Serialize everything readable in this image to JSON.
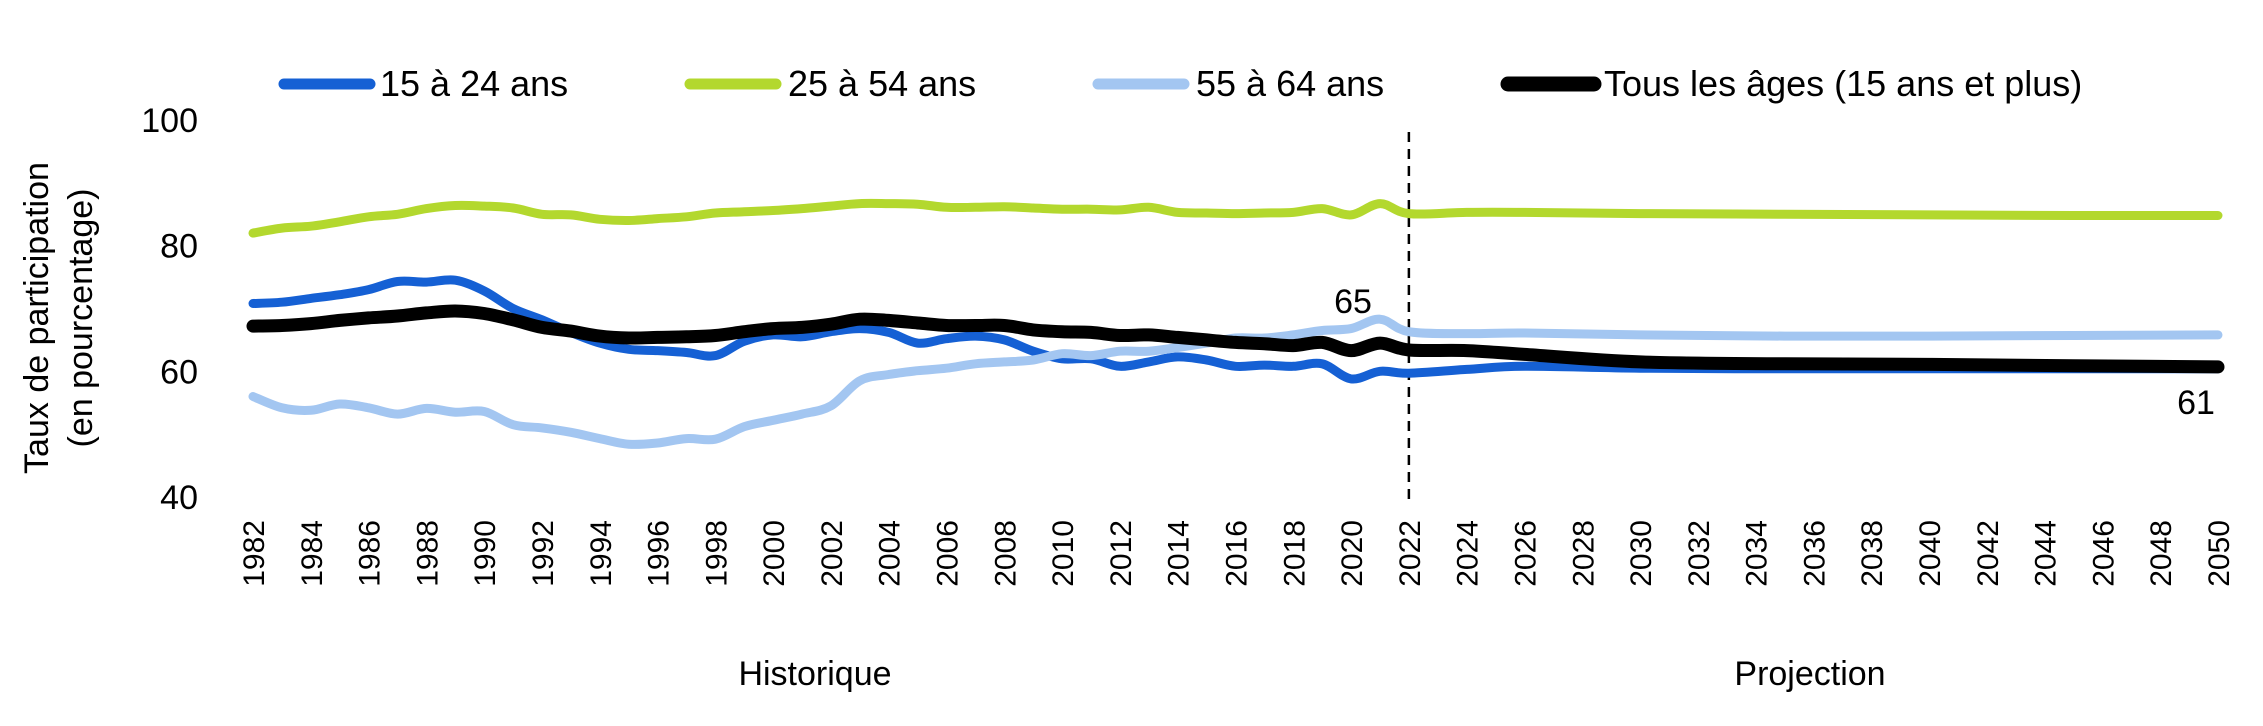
{
  "chart_data": {
    "type": "line",
    "title": "",
    "ylabel": [
      "Taux de participation",
      "(en pourcentage)"
    ],
    "xlabel": "",
    "ylim": [
      40,
      100
    ],
    "yticks": [
      40,
      60,
      80,
      100
    ],
    "xlim": [
      1982,
      2050
    ],
    "xticks": [
      "1982",
      "1984",
      "1986",
      "1988",
      "1990",
      "1992",
      "1994",
      "1996",
      "1998",
      "2000",
      "2002",
      "2004",
      "2006",
      "2008",
      "2010",
      "2012",
      "2014",
      "2016",
      "2018",
      "2020",
      "2022",
      "2024",
      "2026",
      "2028",
      "2030",
      "2032",
      "2034",
      "2036",
      "2038",
      "2040",
      "2042",
      "2044",
      "2046",
      "2048",
      "2050"
    ],
    "grid": false,
    "legend_position": "top",
    "divider_year": 2022,
    "sections": [
      "Historique",
      "Projection"
    ],
    "series": [
      {
        "name": "15 à 24 ans",
        "color": "#1560d4",
        "x": [
          1982,
          1983,
          1984,
          1985,
          1986,
          1987,
          1988,
          1989,
          1990,
          1991,
          1992,
          1993,
          1994,
          1995,
          1996,
          1997,
          1998,
          1999,
          2000,
          2001,
          2002,
          2003,
          2004,
          2005,
          2006,
          2007,
          2008,
          2009,
          2010,
          2011,
          2012,
          2013,
          2014,
          2015,
          2016,
          2017,
          2018,
          2019,
          2020,
          2021,
          2022,
          2024,
          2026,
          2030,
          2035,
          2040,
          2045,
          2050
        ],
        "values": [
          70.8,
          71.0,
          71.6,
          72.2,
          73.0,
          74.3,
          74.2,
          74.5,
          72.8,
          70.0,
          68.2,
          66.2,
          64.5,
          63.5,
          63.3,
          63.0,
          62.5,
          64.8,
          65.8,
          65.5,
          66.3,
          66.8,
          66.2,
          64.5,
          65.2,
          65.6,
          65.0,
          63.2,
          62.0,
          62.0,
          60.8,
          61.5,
          62.3,
          61.8,
          60.8,
          61.0,
          60.8,
          61.2,
          58.8,
          60.0,
          59.7,
          60.3,
          60.8,
          60.5,
          60.4,
          60.4,
          60.4,
          60.4
        ]
      },
      {
        "name": "25 à 54 ans",
        "color": "#b3d82e",
        "x": [
          1982,
          1983,
          1984,
          1985,
          1986,
          1987,
          1988,
          1989,
          1990,
          1991,
          1992,
          1993,
          1994,
          1995,
          1996,
          1997,
          1998,
          1999,
          2000,
          2001,
          2002,
          2003,
          2004,
          2005,
          2006,
          2007,
          2008,
          2009,
          2010,
          2011,
          2012,
          2013,
          2014,
          2015,
          2016,
          2017,
          2018,
          2019,
          2020,
          2021,
          2022,
          2024,
          2026,
          2030,
          2035,
          2040,
          2045,
          2050
        ],
        "values": [
          82.0,
          82.8,
          83.1,
          83.8,
          84.6,
          85.0,
          85.9,
          86.4,
          86.3,
          86.0,
          85.0,
          84.9,
          84.2,
          84.0,
          84.3,
          84.6,
          85.2,
          85.4,
          85.6,
          85.9,
          86.3,
          86.7,
          86.7,
          86.6,
          86.1,
          86.1,
          86.2,
          86.0,
          85.8,
          85.8,
          85.7,
          86.1,
          85.3,
          85.2,
          85.1,
          85.2,
          85.3,
          85.9,
          84.9,
          86.7,
          85.1,
          85.3,
          85.3,
          85.1,
          85.0,
          84.9,
          84.8,
          84.8
        ]
      },
      {
        "name": "55 à 64 ans",
        "color": "#a3c6f1",
        "x": [
          1982,
          1983,
          1984,
          1985,
          1986,
          1987,
          1988,
          1989,
          1990,
          1991,
          1992,
          1993,
          1994,
          1995,
          1996,
          1997,
          1998,
          1999,
          2000,
          2001,
          2002,
          2003,
          2004,
          2005,
          2006,
          2007,
          2008,
          2009,
          2010,
          2011,
          2012,
          2013,
          2014,
          2015,
          2016,
          2017,
          2018,
          2019,
          2020,
          2021,
          2022,
          2024,
          2026,
          2030,
          2035,
          2040,
          2045,
          2050
        ],
        "values": [
          56.0,
          54.2,
          53.8,
          54.8,
          54.2,
          53.2,
          54.1,
          53.5,
          53.6,
          51.5,
          51.0,
          50.3,
          49.3,
          48.4,
          48.6,
          49.3,
          49.2,
          51.2,
          52.2,
          53.2,
          54.5,
          58.5,
          59.5,
          60.1,
          60.5,
          61.2,
          61.5,
          61.8,
          62.8,
          62.5,
          63.2,
          63.2,
          63.8,
          64.5,
          65.3,
          65.3,
          65.8,
          66.5,
          66.8,
          68.3,
          66.3,
          66.0,
          66.1,
          65.8,
          65.6,
          65.6,
          65.7,
          65.8
        ]
      },
      {
        "name": "Tous les âges (15 ans et plus)",
        "color": "#000000",
        "x": [
          1982,
          1983,
          1984,
          1985,
          1986,
          1987,
          1988,
          1989,
          1990,
          1991,
          1992,
          1993,
          1994,
          1995,
          1996,
          1997,
          1998,
          1999,
          2000,
          2001,
          2002,
          2003,
          2004,
          2005,
          2006,
          2007,
          2008,
          2009,
          2010,
          2011,
          2012,
          2013,
          2014,
          2015,
          2016,
          2017,
          2018,
          2019,
          2020,
          2021,
          2022,
          2024,
          2026,
          2030,
          2035,
          2040,
          2045,
          2050
        ],
        "values": [
          67.2,
          67.3,
          67.6,
          68.1,
          68.5,
          68.8,
          69.3,
          69.6,
          69.2,
          68.2,
          67.0,
          66.4,
          65.6,
          65.3,
          65.4,
          65.5,
          65.7,
          66.3,
          66.8,
          67.0,
          67.5,
          68.3,
          68.1,
          67.7,
          67.3,
          67.3,
          67.3,
          66.6,
          66.3,
          66.2,
          65.7,
          65.8,
          65.4,
          65.0,
          64.6,
          64.4,
          64.1,
          64.6,
          63.3,
          64.5,
          63.4,
          63.3,
          62.7,
          61.5,
          61.2,
          61.1,
          60.9,
          60.7
        ]
      }
    ],
    "annotations": [
      {
        "text": "65",
        "x": 2020,
        "y": 65
      },
      {
        "text": "61",
        "x": 2050,
        "y": 61
      }
    ]
  }
}
